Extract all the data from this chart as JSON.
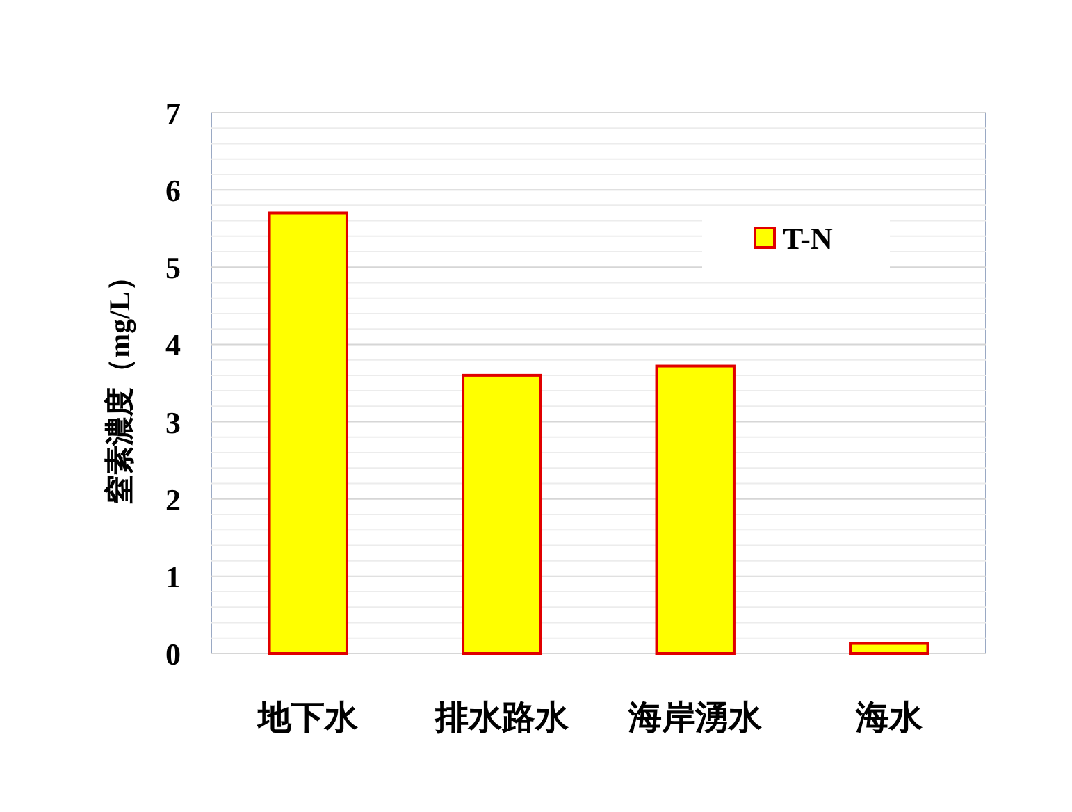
{
  "chart_data": {
    "type": "bar",
    "ylabel": "窒素濃度（mg/L）",
    "categories": [
      "地下水",
      "排水路水",
      "海岸湧水",
      "海水"
    ],
    "series": [
      {
        "name": "T-N",
        "color": "#ffff00",
        "values": [
          5.7,
          3.6,
          3.72,
          0.13
        ]
      }
    ],
    "ylim": [
      0,
      7
    ],
    "yticks": [
      0,
      {
        "value": 0.2,
        "label": null
      },
      {
        "value": 0.4,
        "label": null
      },
      {
        "value": 0.6,
        "label": null
      },
      {
        "value": 0.8,
        "label": null
      },
      1,
      {
        "value": 1.2,
        "label": null
      },
      {
        "value": 1.4,
        "label": null
      },
      {
        "value": 1.6,
        "label": null
      },
      {
        "value": 1.8,
        "label": null
      },
      2,
      {
        "value": 2.2,
        "label": null
      },
      {
        "value": 2.4,
        "label": null
      },
      {
        "value": 2.6,
        "label": null
      },
      {
        "value": 2.8,
        "label": null
      },
      3,
      {
        "value": 3.2,
        "label": null
      },
      {
        "value": 3.4,
        "label": null
      },
      {
        "value": 3.6,
        "label": null
      },
      {
        "value": 3.8,
        "label": null
      },
      4,
      {
        "value": 4.2,
        "label": null
      },
      {
        "value": 4.4,
        "label": null
      },
      {
        "value": 4.6,
        "label": null
      },
      {
        "value": 4.8,
        "label": null
      },
      5,
      {
        "value": 5.2,
        "label": null
      },
      {
        "value": 5.4,
        "label": null
      },
      {
        "value": 5.6,
        "label": null
      },
      {
        "value": 5.8,
        "label": null
      },
      6,
      {
        "value": 6.2,
        "label": null
      },
      {
        "value": 6.4,
        "label": null
      },
      {
        "value": 6.6,
        "label": null
      },
      {
        "value": 6.8,
        "label": null
      },
      7
    ],
    "grid": "y",
    "legend": "top right"
  }
}
